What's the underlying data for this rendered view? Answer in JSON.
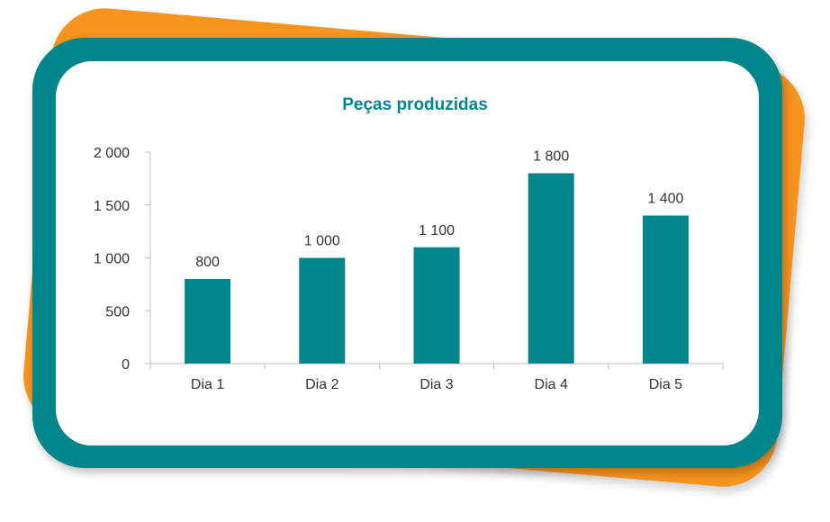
{
  "colors": {
    "orange": "#F7941D",
    "teal": "#00868A",
    "axis": "#bfbfbf"
  },
  "chart_data": {
    "type": "bar",
    "title": "Peças produzidas",
    "categories": [
      "Dia 1",
      "Dia 2",
      "Dia 3",
      "Dia 4",
      "Dia 5"
    ],
    "values": [
      800,
      1000,
      1100,
      1800,
      1400
    ],
    "data_labels": [
      "800",
      "1 000",
      "1 100",
      "1 800",
      "1 400"
    ],
    "yticks": [
      0,
      500,
      1000,
      1500,
      2000
    ],
    "ytick_labels": [
      "0",
      "500",
      "1 000",
      "1 500",
      "2 000"
    ],
    "ylim": [
      0,
      2000
    ],
    "xlabel": "",
    "ylabel": "",
    "grid": false,
    "legend": "none"
  }
}
